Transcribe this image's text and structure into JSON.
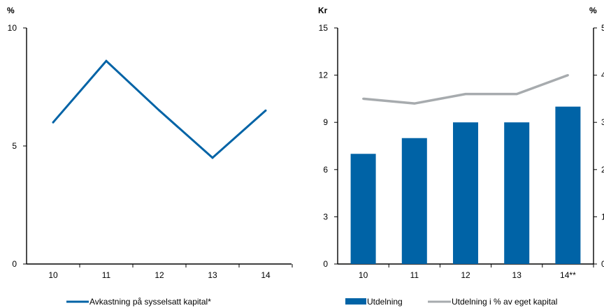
{
  "chart_data": [
    {
      "type": "line",
      "unit_label": "%",
      "categories": [
        "10",
        "11",
        "12",
        "13",
        "14"
      ],
      "series": [
        {
          "name": "Avkastning på sysselsatt kapital*",
          "color": "#0063a6",
          "values": [
            6.0,
            8.6,
            6.5,
            4.5,
            6.5
          ]
        }
      ],
      "ylim": [
        0,
        10
      ],
      "yticks": [
        "0",
        "5",
        "10"
      ],
      "grid": false,
      "legend_position": "bottom"
    },
    {
      "type": "bar",
      "unit_label_left": "Kr",
      "unit_label_right": "%",
      "categories": [
        "10",
        "11",
        "12",
        "13",
        "14**"
      ],
      "series": [
        {
          "name": "Utdelning",
          "type": "bar",
          "axis": "left",
          "color": "#0063a6",
          "values": [
            7,
            8,
            9,
            9,
            10
          ]
        },
        {
          "name": "Utdelning i % av eget kapital",
          "type": "line",
          "axis": "right",
          "color": "#a7abae",
          "values": [
            3.5,
            3.4,
            3.6,
            3.6,
            4.0
          ]
        }
      ],
      "ylim_left": [
        0,
        15
      ],
      "yticks_left": [
        "0",
        "3",
        "6",
        "9",
        "12",
        "15"
      ],
      "ylim_right": [
        0,
        5
      ],
      "yticks_right": [
        "0",
        "1",
        "2",
        "3",
        "4",
        "5"
      ],
      "grid": false,
      "legend_position": "bottom"
    }
  ]
}
